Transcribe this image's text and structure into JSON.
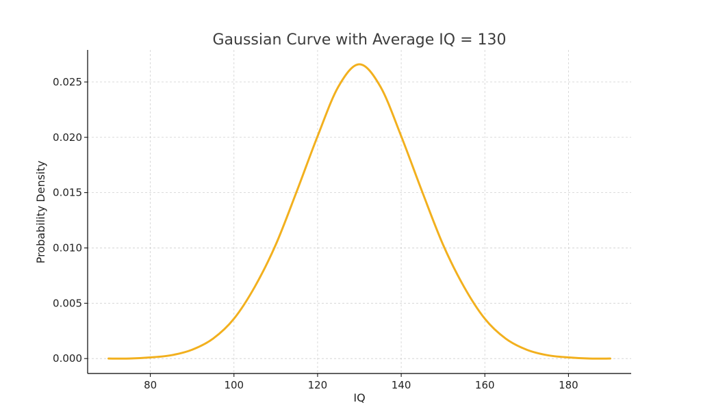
{
  "chart_data": {
    "type": "line",
    "title": "Gaussian Curve with Average IQ = 130",
    "xlabel": "IQ",
    "ylabel": "Probability Density",
    "xlim": [
      65,
      195
    ],
    "ylim": [
      -0.00135,
      0.0279
    ],
    "xticks": [
      80,
      100,
      120,
      140,
      160,
      180
    ],
    "xtick_labels": [
      "80",
      "100",
      "120",
      "140",
      "160",
      "180"
    ],
    "yticks": [
      0.0,
      0.005,
      0.01,
      0.015,
      0.02,
      0.025
    ],
    "ytick_labels": [
      "0.000",
      "0.005",
      "0.010",
      "0.015",
      "0.020",
      "0.025"
    ],
    "grid": true,
    "series": [
      {
        "color": "#f2b01e",
        "x": [
          70,
          75,
          80,
          85,
          90,
          95,
          100,
          105,
          110,
          115,
          120,
          125,
          130,
          135,
          140,
          145,
          150,
          155,
          160,
          165,
          170,
          175,
          180,
          185,
          190
        ],
        "y": [
          0.0,
          0.0,
          0.0001,
          0.0003,
          0.0008,
          0.0018,
          0.0036,
          0.0065,
          0.0103,
          0.0151,
          0.0201,
          0.0246,
          0.0266,
          0.0246,
          0.0201,
          0.0151,
          0.0103,
          0.0065,
          0.0036,
          0.0018,
          0.0008,
          0.0003,
          0.0001,
          0.0,
          0.0
        ]
      }
    ]
  }
}
